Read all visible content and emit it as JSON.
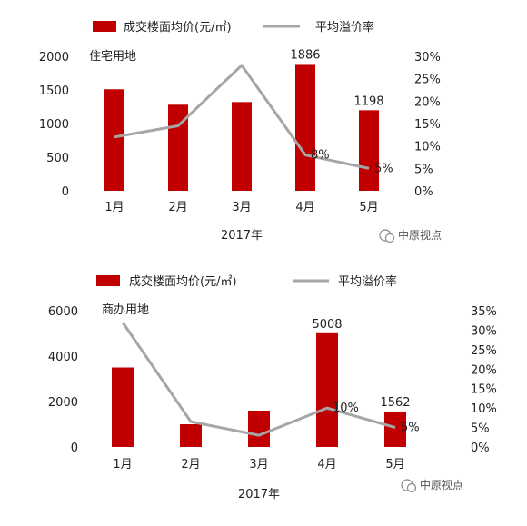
{
  "chart_data": [
    {
      "type": "bar",
      "land_type": "住宅用地",
      "categories": [
        "1月",
        "2月",
        "3月",
        "4月",
        "5月"
      ],
      "xlabel": "2017年",
      "series": [
        {
          "name": "成交楼面均价(元/㎡)",
          "axis": "left",
          "values": [
            1510,
            1280,
            1320,
            1886,
            1198
          ],
          "labels": [
            null,
            null,
            null,
            "1886",
            "1198"
          ]
        },
        {
          "name": "平均溢价率",
          "axis": "right",
          "type": "line",
          "values": [
            12,
            14.5,
            28,
            8,
            5
          ],
          "labels": [
            null,
            null,
            null,
            "8%",
            "5%"
          ]
        }
      ],
      "ylim_left": [
        0,
        2000
      ],
      "yticks_left": [
        "0",
        "500",
        "1000",
        "1500",
        "2000"
      ],
      "ylim_right": [
        0,
        30
      ],
      "yticks_right": [
        "0%",
        "5%",
        "10%",
        "15%",
        "20%",
        "25%",
        "30%"
      ],
      "colors": {
        "bar": "#C00000",
        "line": "#A6A6A6"
      },
      "watermark": "中原视点"
    },
    {
      "type": "bar",
      "land_type": "商办用地",
      "categories": [
        "1月",
        "2月",
        "3月",
        "4月",
        "5月"
      ],
      "xlabel": "2017年",
      "series": [
        {
          "name": "成交楼面均价(元/㎡)",
          "axis": "left",
          "values": [
            3500,
            1000,
            1600,
            5008,
            1562
          ],
          "labels": [
            null,
            null,
            null,
            "5008",
            "1562"
          ]
        },
        {
          "name": "平均溢价率",
          "axis": "right",
          "type": "line",
          "values": [
            32,
            6.5,
            3,
            10,
            5
          ],
          "labels": [
            null,
            null,
            null,
            "10%",
            "5%"
          ]
        }
      ],
      "ylim_left": [
        0,
        6000
      ],
      "yticks_left": [
        "0",
        "2000",
        "4000",
        "6000"
      ],
      "ylim_right": [
        0,
        35
      ],
      "yticks_right": [
        "0%",
        "5%",
        "10%",
        "15%",
        "20%",
        "25%",
        "30%",
        "35%"
      ],
      "colors": {
        "bar": "#C00000",
        "line": "#A6A6A6"
      },
      "watermark": "中原视点"
    }
  ]
}
